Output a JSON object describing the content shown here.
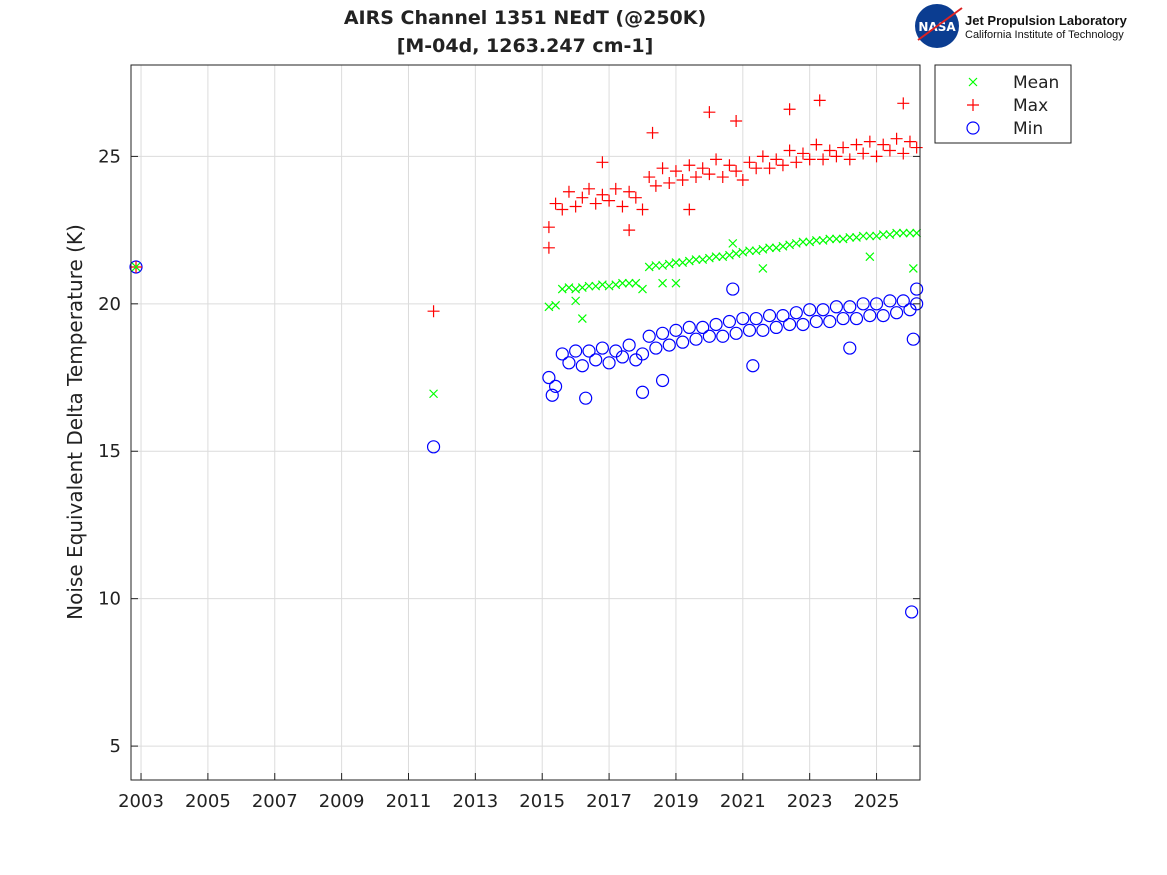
{
  "chart_data": {
    "type": "scatter",
    "title": "AIRS Channel 1351 NEdT (@250K)",
    "subtitle": "[M-04d, 1263.247 cm-1]",
    "xlabel": "",
    "ylabel": "Noise Equivalent Delta Temperature (K)",
    "xlim": [
      2002.7,
      2026.3
    ],
    "ylim": [
      3.85,
      28.1
    ],
    "xticks": [
      2003,
      2005,
      2007,
      2009,
      2011,
      2013,
      2015,
      2017,
      2019,
      2021,
      2023,
      2025
    ],
    "yticks": [
      5,
      10,
      15,
      20,
      25
    ],
    "grid": true,
    "legend_placement": "outside-top-right",
    "x": [
      2015.2,
      2015.4,
      2015.6,
      2015.8,
      2016.0,
      2016.2,
      2016.4,
      2016.6,
      2016.8,
      2017.0,
      2017.2,
      2017.4,
      2017.6,
      2017.8,
      2018.0,
      2018.2,
      2018.4,
      2018.6,
      2018.8,
      2019.0,
      2019.2,
      2019.4,
      2019.6,
      2019.8,
      2020.0,
      2020.2,
      2020.4,
      2020.6,
      2020.8,
      2021.0,
      2021.2,
      2021.4,
      2021.6,
      2021.8,
      2022.0,
      2022.2,
      2022.4,
      2022.6,
      2022.8,
      2023.0,
      2023.2,
      2023.4,
      2023.6,
      2023.8,
      2024.0,
      2024.2,
      2024.4,
      2024.6,
      2024.8,
      2025.0,
      2025.2,
      2025.4,
      2025.6,
      2025.8,
      2026.0,
      2026.2
    ],
    "series": [
      {
        "name": "Mean",
        "marker": "x",
        "color": "#00ff00",
        "values": [
          19.9,
          19.95,
          20.5,
          20.55,
          20.5,
          20.55,
          20.6,
          20.6,
          20.65,
          20.6,
          20.65,
          20.7,
          20.7,
          20.7,
          20.5,
          21.25,
          21.3,
          21.3,
          21.35,
          21.4,
          21.4,
          21.45,
          21.5,
          21.5,
          21.55,
          21.6,
          21.6,
          21.65,
          21.7,
          21.75,
          21.8,
          21.8,
          21.85,
          21.9,
          21.9,
          21.95,
          22.0,
          22.05,
          22.1,
          22.1,
          22.15,
          22.15,
          22.2,
          22.2,
          22.2,
          22.25,
          22.25,
          22.3,
          22.3,
          22.3,
          22.35,
          22.35,
          22.4,
          22.4,
          22.4,
          22.4
        ],
        "extra_points": [
          [
            2002.85,
            21.25
          ],
          [
            2011.75,
            16.95
          ],
          [
            2016.2,
            19.5
          ],
          [
            2016.0,
            20.1
          ],
          [
            2018.6,
            20.7
          ],
          [
            2019.0,
            20.7
          ],
          [
            2020.7,
            22.05
          ],
          [
            2021.6,
            21.2
          ],
          [
            2024.8,
            21.6
          ],
          [
            2026.1,
            21.2
          ]
        ]
      },
      {
        "name": "Max",
        "marker": "+",
        "color": "#ff0000",
        "values": [
          22.6,
          23.4,
          23.2,
          23.8,
          23.3,
          23.6,
          23.9,
          23.4,
          23.7,
          23.5,
          23.9,
          23.3,
          23.8,
          23.6,
          23.2,
          24.3,
          24.0,
          24.6,
          24.1,
          24.5,
          24.2,
          24.7,
          24.3,
          24.6,
          24.4,
          24.9,
          24.3,
          24.7,
          24.5,
          24.2,
          24.8,
          24.6,
          25.0,
          24.6,
          24.9,
          24.7,
          25.2,
          24.8,
          25.1,
          24.9,
          25.4,
          24.9,
          25.2,
          25.0,
          25.3,
          24.9,
          25.4,
          25.1,
          25.5,
          25.0,
          25.4,
          25.2,
          25.6,
          25.1,
          25.5,
          25.3
        ],
        "extra_points": [
          [
            2002.85,
            21.25
          ],
          [
            2011.75,
            19.75
          ],
          [
            2015.2,
            21.9
          ],
          [
            2016.8,
            24.8
          ],
          [
            2018.3,
            25.8
          ],
          [
            2020.0,
            26.5
          ],
          [
            2020.8,
            26.2
          ],
          [
            2022.4,
            26.6
          ],
          [
            2023.3,
            26.9
          ],
          [
            2025.8,
            26.8
          ],
          [
            2017.6,
            22.5
          ],
          [
            2019.4,
            23.2
          ]
        ]
      },
      {
        "name": "Min",
        "marker": "o",
        "color": "#0000ff",
        "values": [
          17.5,
          17.2,
          18.3,
          18.0,
          18.4,
          17.9,
          18.4,
          18.1,
          18.5,
          18.0,
          18.4,
          18.2,
          18.6,
          18.1,
          18.3,
          18.9,
          18.5,
          19.0,
          18.6,
          19.1,
          18.7,
          19.2,
          18.8,
          19.2,
          18.9,
          19.3,
          18.9,
          19.4,
          19.0,
          19.5,
          19.1,
          19.5,
          19.1,
          19.6,
          19.2,
          19.6,
          19.3,
          19.7,
          19.3,
          19.8,
          19.4,
          19.8,
          19.4,
          19.9,
          19.5,
          19.9,
          19.5,
          20.0,
          19.6,
          20.0,
          19.6,
          20.1,
          19.7,
          20.1,
          19.8,
          20.0
        ],
        "extra_points": [
          [
            2002.85,
            21.25
          ],
          [
            2011.75,
            15.15
          ],
          [
            2015.3,
            16.9
          ],
          [
            2016.3,
            16.8
          ],
          [
            2018.0,
            17.0
          ],
          [
            2018.6,
            17.4
          ],
          [
            2020.7,
            20.5
          ],
          [
            2021.3,
            17.9
          ],
          [
            2024.2,
            18.5
          ],
          [
            2026.1,
            18.8
          ],
          [
            2026.05,
            9.55
          ],
          [
            2026.2,
            20.5
          ]
        ]
      }
    ]
  },
  "logo": {
    "org": "Jet Propulsion Laboratory",
    "sub": "California Institute of Technology",
    "badge": "NASA"
  }
}
